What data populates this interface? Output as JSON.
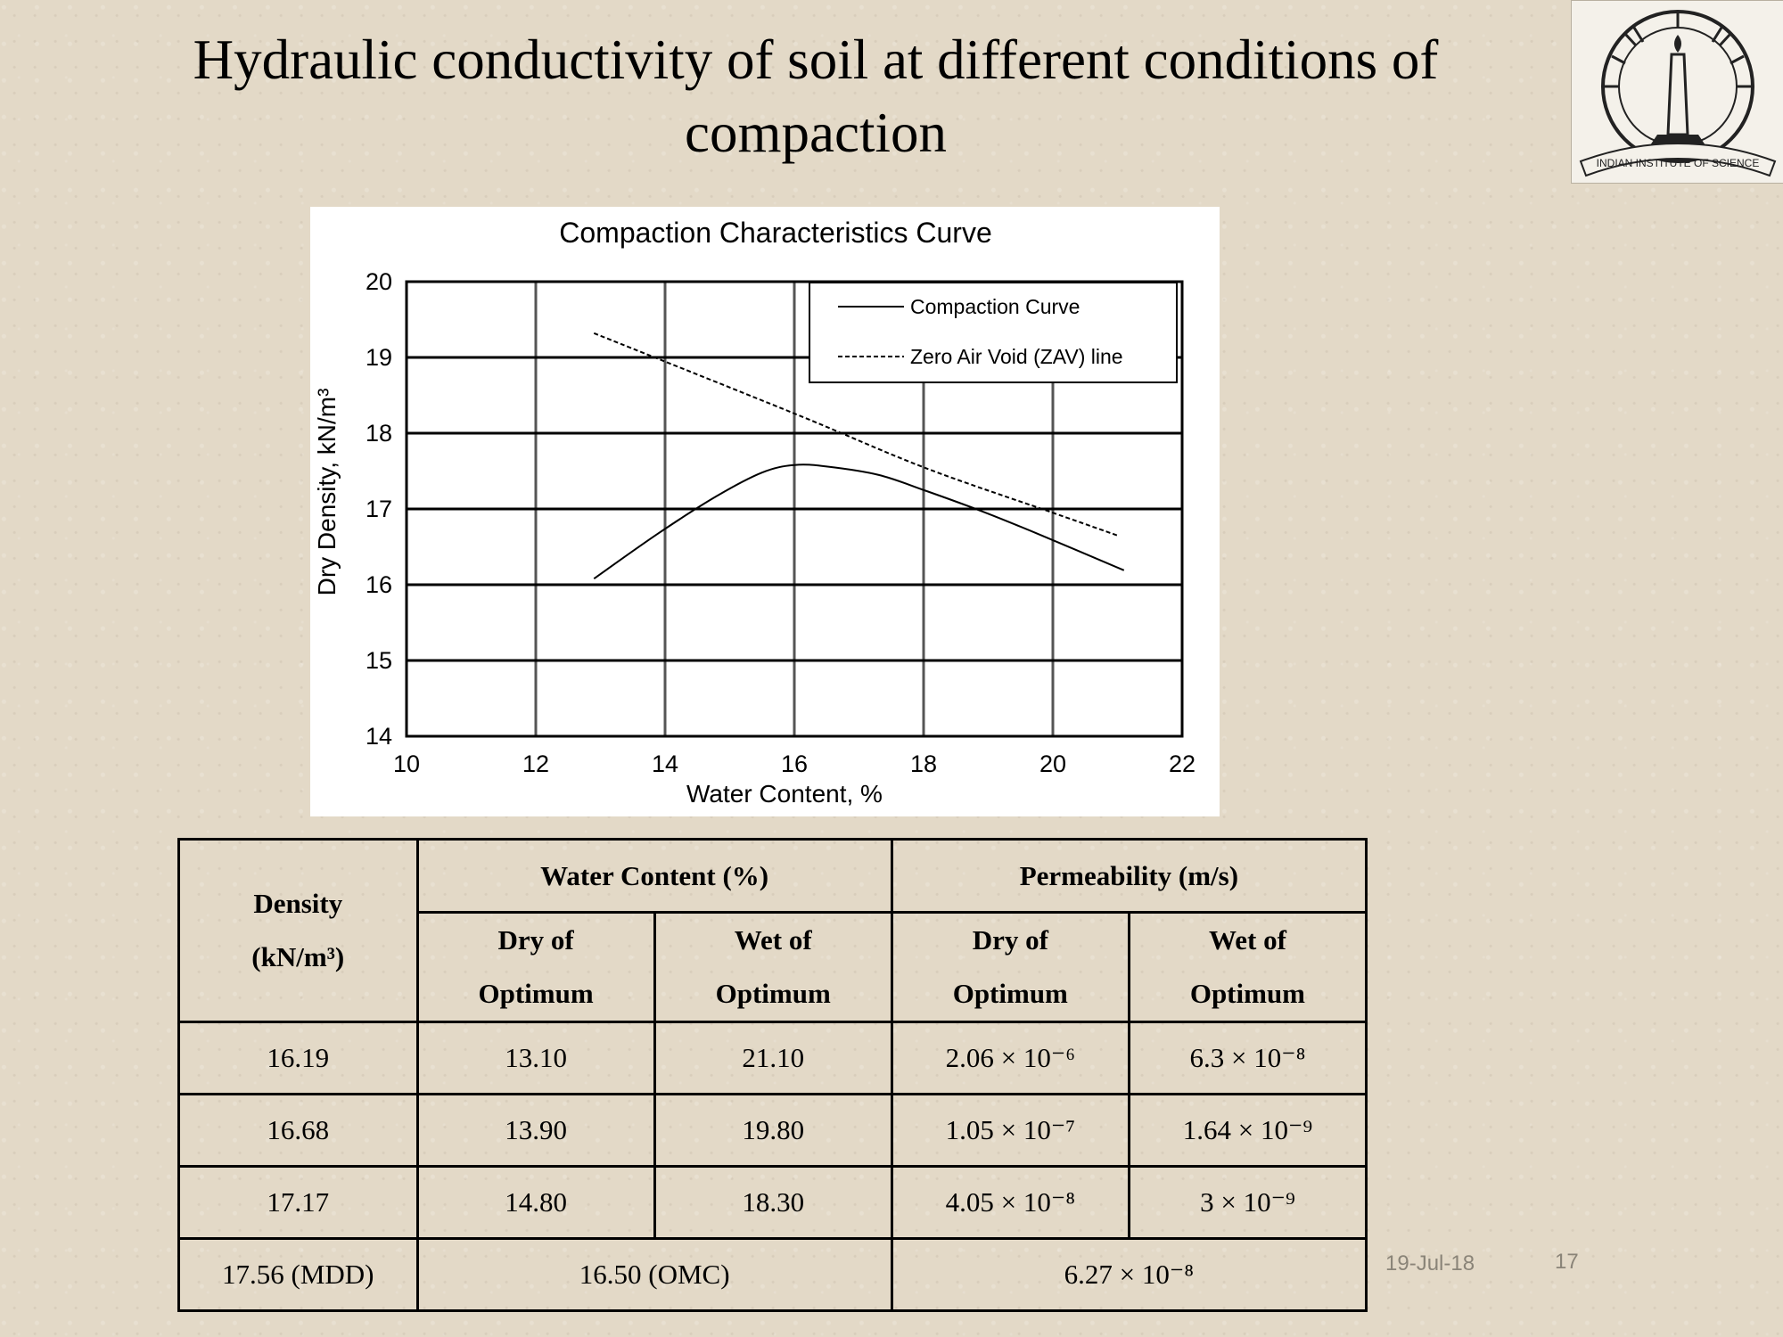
{
  "slide": {
    "title": "Hydraulic conductivity of soil at different conditions of compaction",
    "date": "19-Jul-18",
    "page_number": "17"
  },
  "logo": {
    "text": "INDIAN INSTITUTE OF SCIENCE"
  },
  "chart_data": {
    "type": "line",
    "title": "Compaction Characteristics Curve",
    "xlabel": "Water Content, %",
    "ylabel": "Dry Density, kN/m³",
    "xlim": [
      10,
      22
    ],
    "ylim": [
      14,
      20
    ],
    "x_ticks": [
      "10",
      "12",
      "14",
      "16",
      "18",
      "20",
      "22"
    ],
    "y_ticks": [
      "14",
      "15",
      "16",
      "17",
      "18",
      "19",
      "20"
    ],
    "grid": true,
    "legend_position": "top-right",
    "series": [
      {
        "name": "Compaction Curve",
        "style": "solid",
        "x": [
          12.9,
          13.9,
          14.8,
          15.5,
          16.0,
          16.5,
          17.3,
          18.0,
          18.9,
          19.8,
          21.1
        ],
        "y": [
          16.08,
          16.68,
          17.17,
          17.48,
          17.58,
          17.56,
          17.45,
          17.25,
          16.97,
          16.66,
          16.19
        ]
      },
      {
        "name": "Zero Air Void (ZAV) line",
        "style": "dashed",
        "x": [
          12.9,
          16.0,
          18.0,
          20.0,
          21.0
        ],
        "y": [
          19.32,
          18.26,
          17.55,
          16.95,
          16.65
        ]
      }
    ]
  },
  "table": {
    "header": {
      "density_label_line1": "Density",
      "density_label_line2": "(kN/m³)",
      "water_content": "Water Content (%)",
      "permeability": "Permeability (m/s)",
      "sub": [
        {
          "line1": "Dry of",
          "line2": "Optimum"
        },
        {
          "line1": "Wet of",
          "line2": "Optimum"
        },
        {
          "line1": "Dry of",
          "line2": "Optimum"
        },
        {
          "line1": "Wet of",
          "line2": "Optimum"
        }
      ]
    },
    "rows": [
      {
        "density": "16.19",
        "wc_dry": "13.10",
        "wc_wet": "21.10",
        "perm_dry": "2.06 × 10⁻⁶",
        "perm_wet": "6.3 × 10⁻⁸"
      },
      {
        "density": "16.68",
        "wc_dry": "13.90",
        "wc_wet": "19.80",
        "perm_dry": "1.05 × 10⁻⁷",
        "perm_wet": "1.64 × 10⁻⁹"
      },
      {
        "density": "17.17",
        "wc_dry": "14.80",
        "wc_wet": "18.30",
        "perm_dry": "4.05 × 10⁻⁸",
        "perm_wet": "3 × 10⁻⁹"
      }
    ],
    "summary": {
      "density": "17.56 (MDD)",
      "water_content": "16.50 (OMC)",
      "permeability": "6.27 × 10⁻⁸"
    }
  }
}
